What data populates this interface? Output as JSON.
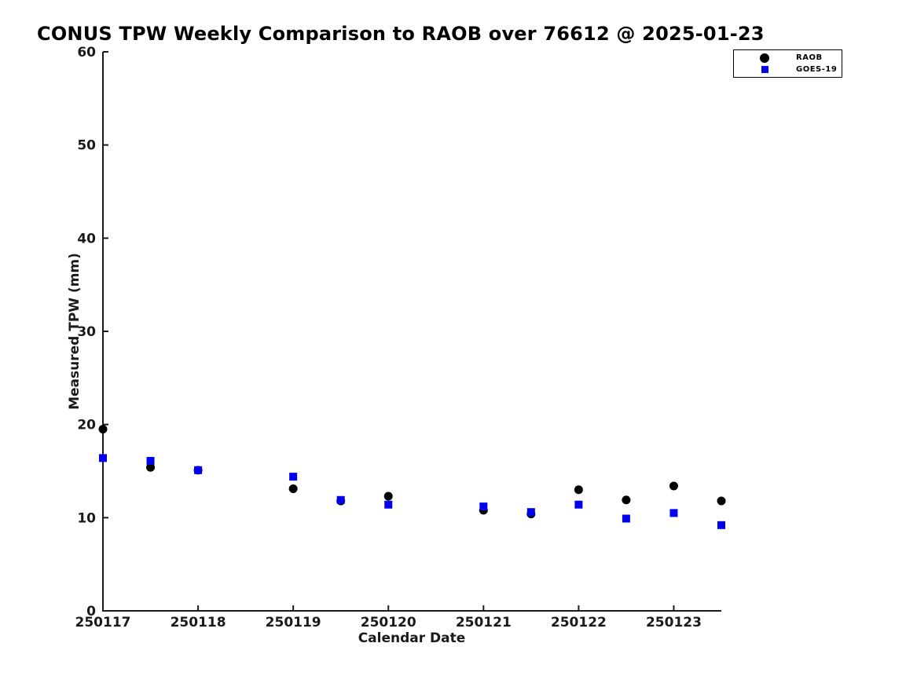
{
  "chart_data": {
    "type": "scatter",
    "title": "CONUS TPW Weekly Comparison to RAOB over 76612 @ 2025-01-23",
    "xlabel": "Calendar Date",
    "ylabel": "Measured TPW (mm)",
    "x_tick_labels": [
      "250117",
      "250118",
      "250119",
      "250120",
      "250121",
      "250122",
      "250123"
    ],
    "x_tick_values": [
      250117,
      250118,
      250119,
      250120,
      250121,
      250122,
      250123
    ],
    "y_tick_values": [
      0,
      10,
      20,
      30,
      40,
      50,
      60
    ],
    "xlim": [
      250117,
      250123.5
    ],
    "ylim": [
      0,
      60
    ],
    "grid": false,
    "legend_position": "top-right",
    "axis_color": "#1a1a1a",
    "series": [
      {
        "name": "RAOB",
        "marker": "circle",
        "color": "#000000",
        "x": [
          250117,
          250117.5,
          250118,
          250119,
          250119.5,
          250120,
          250121,
          250121.5,
          250122,
          250122.5,
          250123,
          250123.5
        ],
        "y": [
          19.5,
          15.4,
          15.1,
          13.1,
          11.8,
          12.3,
          10.8,
          10.4,
          13.0,
          11.9,
          13.4,
          11.8
        ]
      },
      {
        "name": "GOES-19",
        "marker": "square",
        "color": "#0000ee",
        "x": [
          250117,
          250117.5,
          250118,
          250119,
          250119.5,
          250120,
          250121,
          250121.5,
          250122,
          250122.5,
          250123,
          250123.5
        ],
        "y": [
          16.4,
          16.1,
          15.1,
          14.4,
          11.9,
          11.4,
          11.2,
          10.6,
          11.4,
          9.9,
          10.5,
          9.2
        ]
      }
    ]
  }
}
